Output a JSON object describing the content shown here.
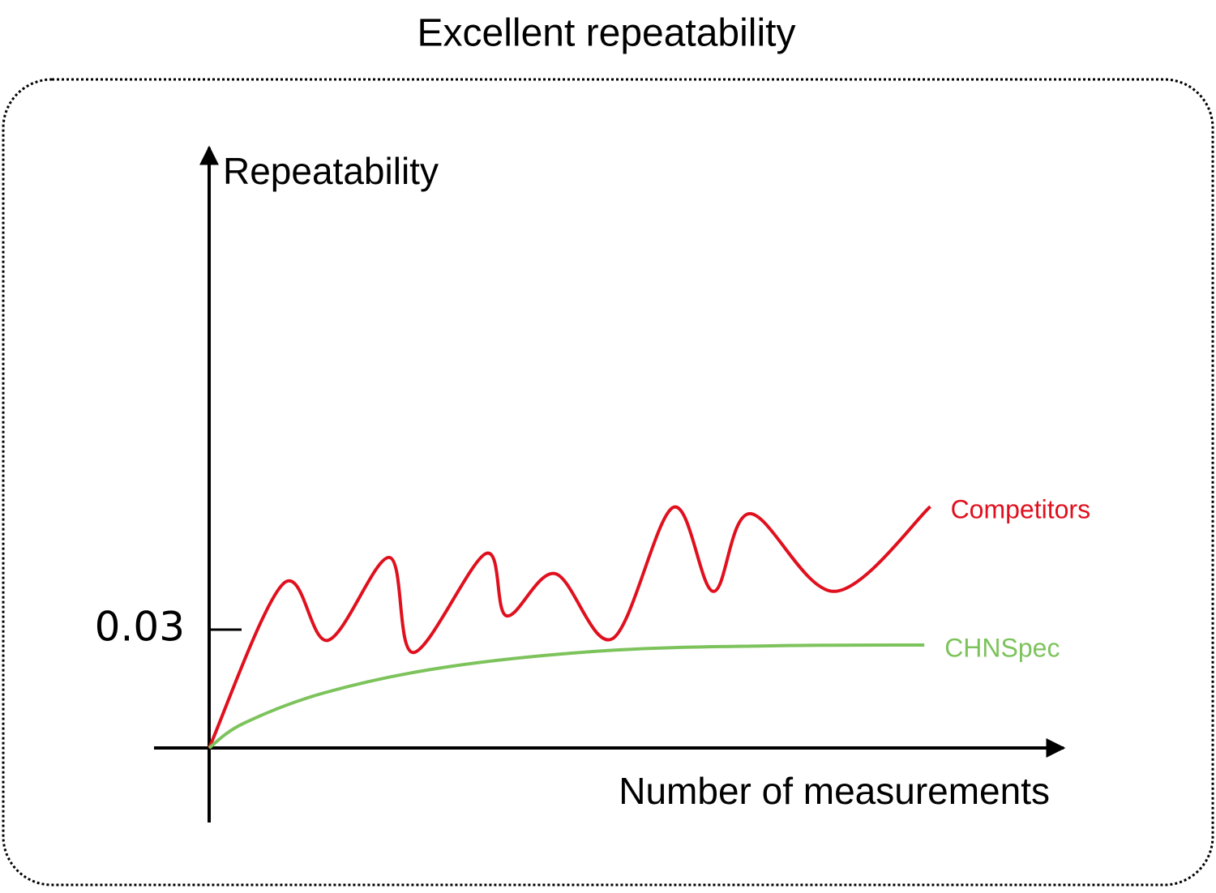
{
  "chart_data": {
    "type": "line",
    "title": "Excellent repeatability",
    "y_label": "Repeatability",
    "x_label": "Number of measurements",
    "xlim": [
      0,
      100
    ],
    "ylim": [
      0,
      0.15
    ],
    "yticks": [
      0.03
    ],
    "grid": false,
    "series": [
      {
        "name": "Competitors",
        "color": "#e0101e",
        "x": [
          0,
          8.7,
          13.9,
          21.1,
          23.9,
          32.4,
          34.8,
          40.5,
          47.2,
          54.3,
          59.0,
          63.3,
          73.2,
          84.4
        ],
        "values": [
          0,
          0.0417,
          0.0273,
          0.0483,
          0.0242,
          0.0493,
          0.0335,
          0.0442,
          0.0277,
          0.061,
          0.0397,
          0.0594,
          0.0397,
          0.0612
        ]
      },
      {
        "name": "CHNSpec",
        "color": "#7dc35c",
        "x": [
          0,
          4,
          13.5,
          27.7,
          46.7,
          65.7,
          83.7
        ],
        "values": [
          0,
          0.0062,
          0.014,
          0.0205,
          0.0247,
          0.0259,
          0.0261
        ]
      }
    ]
  }
}
